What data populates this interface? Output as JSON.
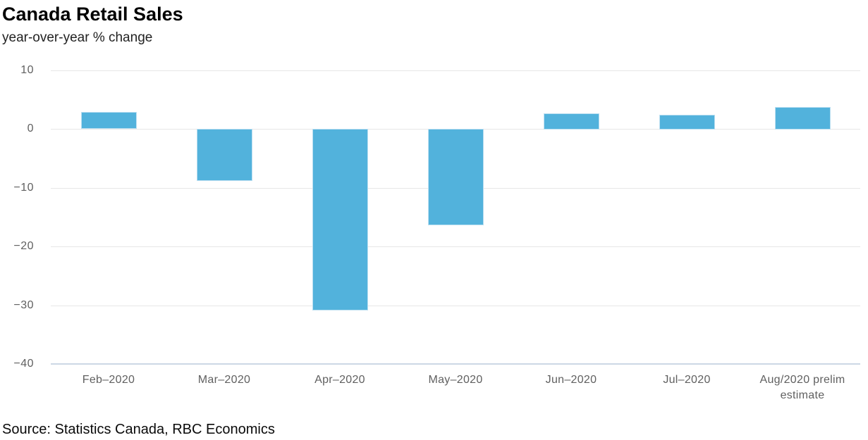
{
  "header": {
    "title": "Canada Retail Sales",
    "subtitle": "year-over-year % change"
  },
  "footer": {
    "source": "Source: Statistics Canada, RBC Economics"
  },
  "chart_data": {
    "type": "bar",
    "title": "Canada Retail Sales",
    "subtitle": "year-over-year % change",
    "categories": [
      "Feb–2020",
      "Mar–2020",
      "Apr–2020",
      "May–2020",
      "Jun–2020",
      "Jul–2020",
      "Aug/2020 prelim estimate"
    ],
    "values": [
      2.9,
      -8.9,
      -30.9,
      -16.4,
      2.7,
      2.5,
      3.8
    ],
    "xlabel": "",
    "ylabel": "year-over-year % change",
    "ylim": [
      -40,
      10
    ],
    "y_ticks": [
      10,
      0,
      -10,
      -20,
      -30,
      -40
    ],
    "grid": true,
    "legend": false,
    "source": "Source: Statistics Canada, RBC Economics",
    "colors": {
      "bar_fill": "#52b2dc",
      "bar_border": "#bcdff1",
      "gridline": "#e7e7e7",
      "bottom_axis_line": "#ccd7e5",
      "tick_label": "#606060",
      "title": "#000000"
    }
  }
}
